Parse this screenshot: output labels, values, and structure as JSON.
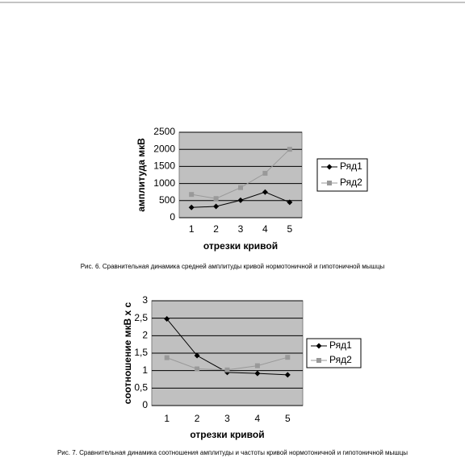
{
  "chart_data": [
    {
      "type": "line",
      "categories": [
        "1",
        "2",
        "3",
        "4",
        "5"
      ],
      "series": [
        {
          "name": "Ряд1",
          "color": "#000000",
          "marker": "diamond",
          "values": [
            300,
            330,
            510,
            750,
            450
          ]
        },
        {
          "name": "Ряд2",
          "color": "#999999",
          "marker": "square",
          "values": [
            680,
            560,
            880,
            1300,
            2000
          ]
        }
      ],
      "ylim": [
        0,
        2500
      ],
      "yticks": [
        0,
        500,
        1000,
        1500,
        2000,
        2500
      ],
      "grid": true,
      "legend": "right",
      "y_label": "амплитуда мкВ",
      "x_label": "отрезки кривой",
      "caption": "Рис. 6. Сравнительная динамика средней амплитуды кривой нормотоничной и гипотоничной мышцы"
    },
    {
      "type": "line",
      "categories": [
        "1",
        "2",
        "3",
        "4",
        "5"
      ],
      "series": [
        {
          "name": "Ряд1",
          "color": "#000000",
          "marker": "diamond",
          "values": [
            2.48,
            1.43,
            0.95,
            0.92,
            0.88
          ]
        },
        {
          "name": "Ряд2",
          "color": "#999999",
          "marker": "square",
          "values": [
            1.37,
            1.05,
            1.02,
            1.14,
            1.38
          ]
        }
      ],
      "ylim": [
        0,
        3
      ],
      "yticks": [
        0,
        {
          "value": 0.5,
          "label": "0,5"
        },
        1,
        {
          "value": 1.5,
          "label": "1,5"
        },
        2,
        {
          "value": 2.5,
          "label": "2,5"
        },
        3
      ],
      "grid": true,
      "legend": "right",
      "y_label": "соотношение мкВ х с",
      "x_label": "отрезки кривой",
      "caption": "Рис. 7. Сравнительная динамика соотношения амплитуды и частоты кривой нормотоничной и гипотоничной мышцы"
    }
  ]
}
